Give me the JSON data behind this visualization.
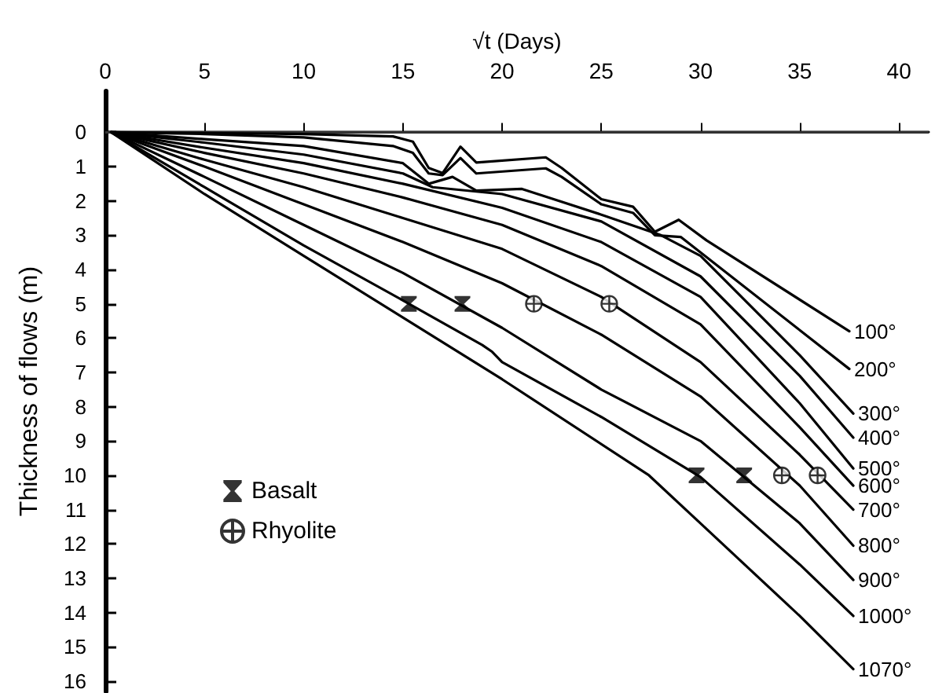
{
  "chart_data": {
    "type": "line",
    "xlabel": "√t (Days)",
    "ylabel": "Thickness of flows (m)",
    "xlim": [
      0,
      41.5
    ],
    "xticks": [
      0,
      5,
      10,
      15,
      20,
      25,
      30,
      35,
      40
    ],
    "ylim": [
      16.3,
      -1.2
    ],
    "yticks": [
      0,
      1,
      2,
      3,
      4,
      5,
      6,
      7,
      8,
      9,
      10,
      11,
      12,
      13,
      14,
      15,
      16
    ],
    "grid": false,
    "legend": "bottom left",
    "marker": "none",
    "line_style": "solid",
    "ref_lines": [
      {
        "axis": "y",
        "value": 0
      }
    ],
    "series": [
      {
        "name": "100°",
        "color": "#000000",
        "x": [
          0.3,
          5,
          10,
          14.5,
          15.5,
          16.3,
          17,
          17.9,
          18.7,
          22.2,
          23,
          25,
          26.6,
          27.7,
          28.9,
          30.3,
          37.5
        ],
        "values": [
          0,
          0.02,
          0.05,
          0.12,
          0.27,
          1.04,
          1.19,
          0.42,
          0.88,
          0.73,
          1.04,
          1.95,
          2.17,
          2.9,
          2.55,
          3.15,
          5.8
        ]
      },
      {
        "name": "200°",
        "color": "#000000",
        "x": [
          0.3,
          5,
          10,
          14.5,
          15.5,
          16.3,
          17,
          17.9,
          18.7,
          22.2,
          23,
          25,
          26.6,
          27.7,
          29,
          37.5
        ],
        "values": [
          0,
          0.05,
          0.15,
          0.4,
          0.6,
          1.2,
          1.25,
          0.75,
          1.2,
          1.05,
          1.3,
          2.1,
          2.35,
          3,
          3.05,
          6.9
        ]
      },
      {
        "name": "300°",
        "color": "#000000",
        "x": [
          0.3,
          5,
          10,
          15,
          16.3,
          17.5,
          18.7,
          21,
          25,
          28,
          30,
          35,
          37.7
        ],
        "values": [
          0,
          0.2,
          0.4,
          0.9,
          1.5,
          1.3,
          1.7,
          1.65,
          2.4,
          3,
          3.6,
          6.5,
          8.2
        ]
      },
      {
        "name": "400°",
        "color": "#000000",
        "x": [
          0.3,
          5,
          10,
          15,
          16.5,
          20,
          25,
          30,
          35,
          37.7
        ],
        "values": [
          0,
          0.3,
          0.65,
          1.2,
          1.6,
          1.8,
          2.6,
          4.2,
          7.1,
          8.9
        ]
      },
      {
        "name": "500°",
        "color": "#000000",
        "x": [
          0.3,
          5,
          10,
          15,
          20,
          25,
          30,
          35,
          37.7
        ],
        "values": [
          0,
          0.45,
          0.9,
          1.5,
          2.2,
          3.2,
          4.8,
          7.9,
          9.8
        ]
      },
      {
        "name": "600°",
        "color": "#000000",
        "x": [
          0.3,
          5,
          10,
          15,
          20,
          25,
          30,
          35,
          37.7
        ],
        "values": [
          0,
          0.6,
          1.2,
          1.9,
          2.7,
          3.9,
          5.6,
          8.6,
          10.3
        ]
      },
      {
        "name": "700°",
        "color": "#000000",
        "x": [
          0.3,
          5,
          10,
          15,
          20,
          25,
          30,
          35,
          37.7
        ],
        "values": [
          0,
          0.8,
          1.6,
          2.5,
          3.4,
          4.8,
          6.7,
          9.4,
          11
        ]
      },
      {
        "name": "800°",
        "color": "#000000",
        "x": [
          0.3,
          5,
          10,
          15,
          20,
          25,
          30,
          35,
          37.7
        ],
        "values": [
          0,
          1,
          2.1,
          3.2,
          4.4,
          5.9,
          7.7,
          10.3,
          12.05
        ]
      },
      {
        "name": "900°",
        "color": "#000000",
        "x": [
          0.3,
          5,
          10,
          15,
          20,
          25,
          30,
          35,
          37.7
        ],
        "values": [
          0,
          1.3,
          2.7,
          4.1,
          5.7,
          7.5,
          9,
          11.4,
          13.05
        ]
      },
      {
        "name": "1000°",
        "color": "#000000",
        "x": [
          0.3,
          5,
          10,
          15,
          19,
          19.5,
          20,
          25,
          30,
          35,
          37.7
        ],
        "values": [
          0,
          1.6,
          3.3,
          4.9,
          6.2,
          6.4,
          6.7,
          8.3,
          10.05,
          12.6,
          14.1
        ]
      },
      {
        "name": "1070°",
        "color": "#000000",
        "x": [
          0.3,
          5,
          10,
          15,
          20,
          27.4,
          30,
          35,
          37.7
        ],
        "values": [
          0,
          1.8,
          3.6,
          5.4,
          7.2,
          10,
          11.4,
          14.1,
          15.65
        ]
      },
      {
        "name": "Basalt",
        "type": "scatter",
        "marker": "star",
        "color": "#000000",
        "x": [
          15.3,
          18,
          29.8,
          32.2
        ],
        "values": [
          5,
          5,
          10,
          10
        ]
      },
      {
        "name": "Rhyolite",
        "type": "scatter",
        "marker": "cross",
        "color": "#000000",
        "x": [
          21.6,
          25.4,
          34.1,
          35.9
        ],
        "values": [
          5,
          5,
          10,
          10
        ]
      }
    ]
  }
}
